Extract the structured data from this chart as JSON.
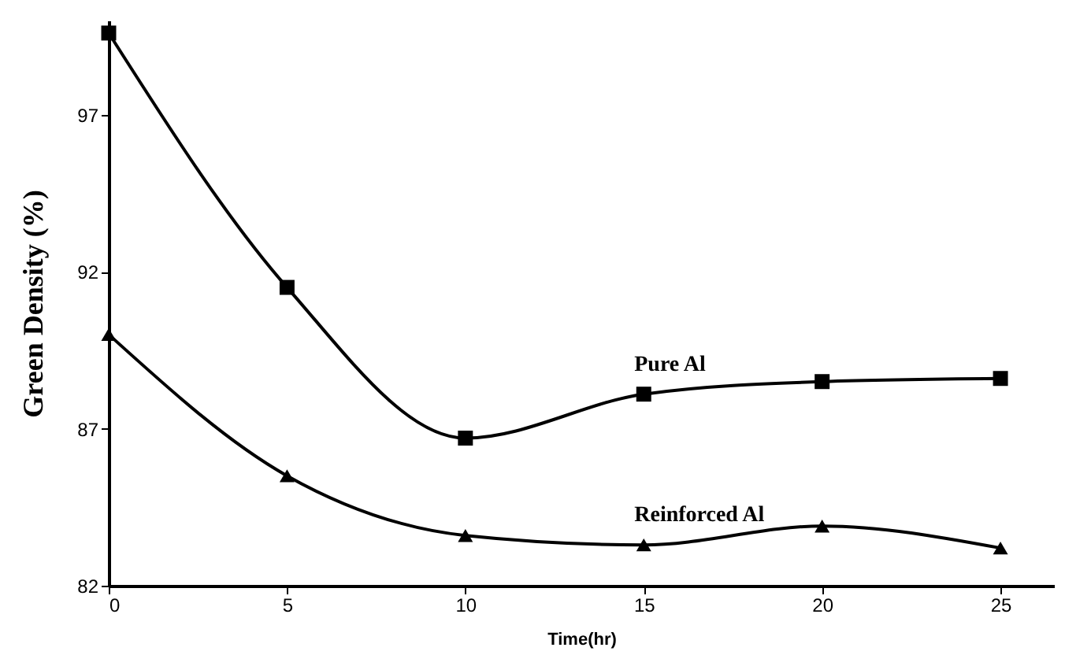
{
  "chart_data": {
    "type": "line",
    "xlabel": "Time(hr)",
    "ylabel": "Green Density (%)",
    "x": [
      0,
      5,
      10,
      15,
      20,
      25
    ],
    "xlim": [
      0,
      26.5
    ],
    "xticks": [
      0,
      5,
      10,
      15,
      20,
      25
    ],
    "ylim": [
      82,
      100
    ],
    "yticks": [
      82,
      87,
      92,
      97
    ],
    "grid": false,
    "legend": false,
    "series": [
      {
        "name": "Pure Al",
        "color": "#000000",
        "marker": "square",
        "values": [
          99.6,
          91.5,
          86.7,
          88.1,
          88.5,
          88.6
        ]
      },
      {
        "name": "Reinforced Al",
        "color": "#000000",
        "marker": "triangle",
        "values": [
          90.0,
          85.5,
          83.6,
          83.3,
          83.9,
          83.2
        ]
      }
    ]
  }
}
